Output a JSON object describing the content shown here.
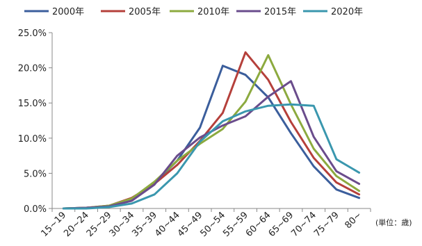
{
  "chart_data": {
    "type": "line",
    "categories": [
      "15~19",
      "20~24",
      "25~29",
      "30~34",
      "35~39",
      "40~44",
      "45~49",
      "50~54",
      "55~59",
      "60~64",
      "65~69",
      "70~74",
      "75~79",
      "80~"
    ],
    "unit_label": "(単位：歳)",
    "ylim": [
      0,
      25
    ],
    "yticks": [
      "0.0%",
      "5.0%",
      "10.0%",
      "15.0%",
      "20.0%",
      "25.0%"
    ],
    "grid": false,
    "legend_position": "top",
    "series": [
      {
        "name": "2000年",
        "color": "#3B5E9C",
        "values": [
          0,
          0.1,
          0.3,
          1.3,
          3.6,
          6.8,
          11.5,
          20.3,
          19.0,
          15.8,
          10.7,
          6.0,
          2.7,
          1.5
        ]
      },
      {
        "name": "2005年",
        "color": "#B5403B",
        "values": [
          0,
          0.1,
          0.4,
          1.5,
          3.5,
          6.2,
          9.6,
          13.6,
          22.2,
          18.3,
          12.3,
          7.2,
          3.7,
          2.0
        ]
      },
      {
        "name": "2010年",
        "color": "#8CAA3F",
        "values": [
          0,
          0.1,
          0.4,
          1.4,
          3.8,
          6.8,
          9.2,
          11.3,
          15.2,
          21.8,
          14.8,
          8.5,
          4.6,
          2.5
        ]
      },
      {
        "name": "2015年",
        "color": "#6A4C8C",
        "values": [
          0,
          0.1,
          0.3,
          1.1,
          3.4,
          7.5,
          10.1,
          11.8,
          13.1,
          15.9,
          18.1,
          10.2,
          5.3,
          3.5
        ]
      },
      {
        "name": "2020年",
        "color": "#3A97AE",
        "values": [
          0,
          0.0,
          0.2,
          0.7,
          2.0,
          5.0,
          9.5,
          12.4,
          13.8,
          14.6,
          14.8,
          14.6,
          7.0,
          5.1
        ]
      }
    ]
  }
}
